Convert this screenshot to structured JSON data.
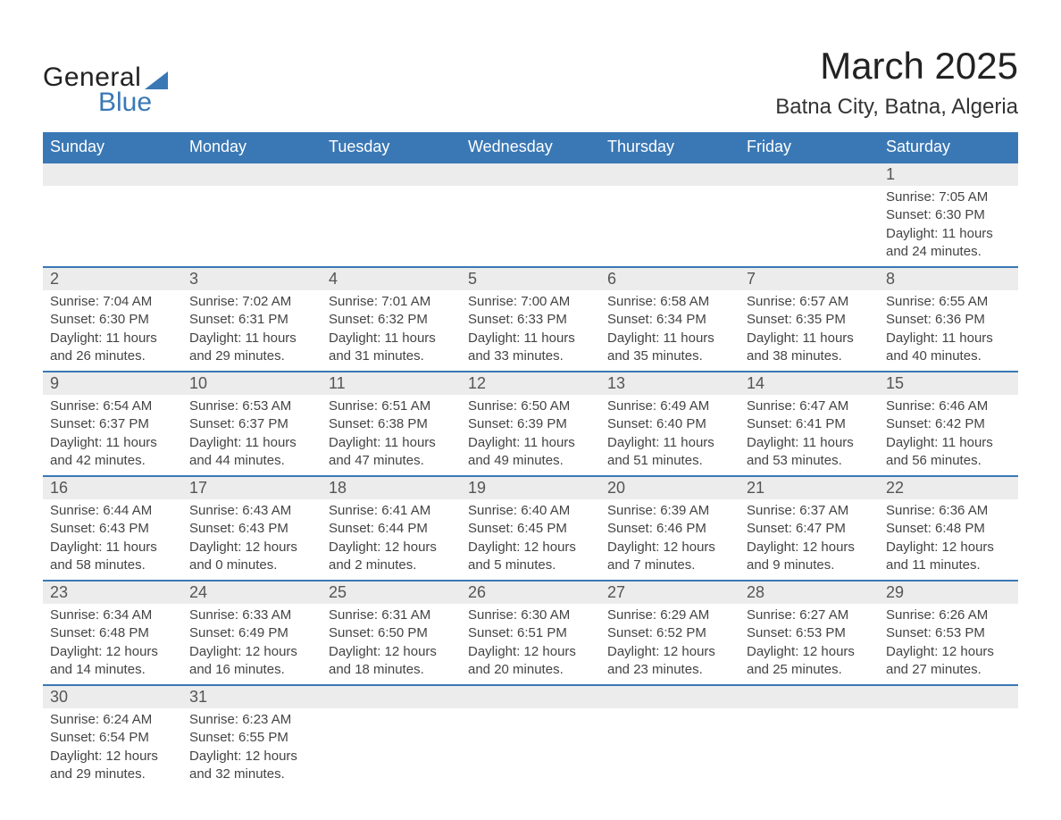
{
  "logo": {
    "word1": "General",
    "word2": "Blue"
  },
  "title": "March 2025",
  "location": "Batna City, Batna, Algeria",
  "colors": {
    "header_bg": "#3a78b5",
    "header_text": "#ffffff",
    "daynum_bg": "#ececec",
    "row_divider": "#3a78b5",
    "body_text": "#444444",
    "title_text": "#222222",
    "page_bg": "#ffffff"
  },
  "fonts": {
    "title_size_pt": 32,
    "location_size_pt": 18,
    "header_size_pt": 14,
    "body_size_pt": 11
  },
  "weekdays": [
    "Sunday",
    "Monday",
    "Tuesday",
    "Wednesday",
    "Thursday",
    "Friday",
    "Saturday"
  ],
  "weeks": [
    {
      "days": [
        null,
        null,
        null,
        null,
        null,
        null,
        {
          "n": "1",
          "sunrise": "Sunrise: 7:05 AM",
          "sunset": "Sunset: 6:30 PM",
          "dl1": "Daylight: 11 hours",
          "dl2": "and 24 minutes."
        }
      ]
    },
    {
      "days": [
        {
          "n": "2",
          "sunrise": "Sunrise: 7:04 AM",
          "sunset": "Sunset: 6:30 PM",
          "dl1": "Daylight: 11 hours",
          "dl2": "and 26 minutes."
        },
        {
          "n": "3",
          "sunrise": "Sunrise: 7:02 AM",
          "sunset": "Sunset: 6:31 PM",
          "dl1": "Daylight: 11 hours",
          "dl2": "and 29 minutes."
        },
        {
          "n": "4",
          "sunrise": "Sunrise: 7:01 AM",
          "sunset": "Sunset: 6:32 PM",
          "dl1": "Daylight: 11 hours",
          "dl2": "and 31 minutes."
        },
        {
          "n": "5",
          "sunrise": "Sunrise: 7:00 AM",
          "sunset": "Sunset: 6:33 PM",
          "dl1": "Daylight: 11 hours",
          "dl2": "and 33 minutes."
        },
        {
          "n": "6",
          "sunrise": "Sunrise: 6:58 AM",
          "sunset": "Sunset: 6:34 PM",
          "dl1": "Daylight: 11 hours",
          "dl2": "and 35 minutes."
        },
        {
          "n": "7",
          "sunrise": "Sunrise: 6:57 AM",
          "sunset": "Sunset: 6:35 PM",
          "dl1": "Daylight: 11 hours",
          "dl2": "and 38 minutes."
        },
        {
          "n": "8",
          "sunrise": "Sunrise: 6:55 AM",
          "sunset": "Sunset: 6:36 PM",
          "dl1": "Daylight: 11 hours",
          "dl2": "and 40 minutes."
        }
      ]
    },
    {
      "days": [
        {
          "n": "9",
          "sunrise": "Sunrise: 6:54 AM",
          "sunset": "Sunset: 6:37 PM",
          "dl1": "Daylight: 11 hours",
          "dl2": "and 42 minutes."
        },
        {
          "n": "10",
          "sunrise": "Sunrise: 6:53 AM",
          "sunset": "Sunset: 6:37 PM",
          "dl1": "Daylight: 11 hours",
          "dl2": "and 44 minutes."
        },
        {
          "n": "11",
          "sunrise": "Sunrise: 6:51 AM",
          "sunset": "Sunset: 6:38 PM",
          "dl1": "Daylight: 11 hours",
          "dl2": "and 47 minutes."
        },
        {
          "n": "12",
          "sunrise": "Sunrise: 6:50 AM",
          "sunset": "Sunset: 6:39 PM",
          "dl1": "Daylight: 11 hours",
          "dl2": "and 49 minutes."
        },
        {
          "n": "13",
          "sunrise": "Sunrise: 6:49 AM",
          "sunset": "Sunset: 6:40 PM",
          "dl1": "Daylight: 11 hours",
          "dl2": "and 51 minutes."
        },
        {
          "n": "14",
          "sunrise": "Sunrise: 6:47 AM",
          "sunset": "Sunset: 6:41 PM",
          "dl1": "Daylight: 11 hours",
          "dl2": "and 53 minutes."
        },
        {
          "n": "15",
          "sunrise": "Sunrise: 6:46 AM",
          "sunset": "Sunset: 6:42 PM",
          "dl1": "Daylight: 11 hours",
          "dl2": "and 56 minutes."
        }
      ]
    },
    {
      "days": [
        {
          "n": "16",
          "sunrise": "Sunrise: 6:44 AM",
          "sunset": "Sunset: 6:43 PM",
          "dl1": "Daylight: 11 hours",
          "dl2": "and 58 minutes."
        },
        {
          "n": "17",
          "sunrise": "Sunrise: 6:43 AM",
          "sunset": "Sunset: 6:43 PM",
          "dl1": "Daylight: 12 hours",
          "dl2": "and 0 minutes."
        },
        {
          "n": "18",
          "sunrise": "Sunrise: 6:41 AM",
          "sunset": "Sunset: 6:44 PM",
          "dl1": "Daylight: 12 hours",
          "dl2": "and 2 minutes."
        },
        {
          "n": "19",
          "sunrise": "Sunrise: 6:40 AM",
          "sunset": "Sunset: 6:45 PM",
          "dl1": "Daylight: 12 hours",
          "dl2": "and 5 minutes."
        },
        {
          "n": "20",
          "sunrise": "Sunrise: 6:39 AM",
          "sunset": "Sunset: 6:46 PM",
          "dl1": "Daylight: 12 hours",
          "dl2": "and 7 minutes."
        },
        {
          "n": "21",
          "sunrise": "Sunrise: 6:37 AM",
          "sunset": "Sunset: 6:47 PM",
          "dl1": "Daylight: 12 hours",
          "dl2": "and 9 minutes."
        },
        {
          "n": "22",
          "sunrise": "Sunrise: 6:36 AM",
          "sunset": "Sunset: 6:48 PM",
          "dl1": "Daylight: 12 hours",
          "dl2": "and 11 minutes."
        }
      ]
    },
    {
      "days": [
        {
          "n": "23",
          "sunrise": "Sunrise: 6:34 AM",
          "sunset": "Sunset: 6:48 PM",
          "dl1": "Daylight: 12 hours",
          "dl2": "and 14 minutes."
        },
        {
          "n": "24",
          "sunrise": "Sunrise: 6:33 AM",
          "sunset": "Sunset: 6:49 PM",
          "dl1": "Daylight: 12 hours",
          "dl2": "and 16 minutes."
        },
        {
          "n": "25",
          "sunrise": "Sunrise: 6:31 AM",
          "sunset": "Sunset: 6:50 PM",
          "dl1": "Daylight: 12 hours",
          "dl2": "and 18 minutes."
        },
        {
          "n": "26",
          "sunrise": "Sunrise: 6:30 AM",
          "sunset": "Sunset: 6:51 PM",
          "dl1": "Daylight: 12 hours",
          "dl2": "and 20 minutes."
        },
        {
          "n": "27",
          "sunrise": "Sunrise: 6:29 AM",
          "sunset": "Sunset: 6:52 PM",
          "dl1": "Daylight: 12 hours",
          "dl2": "and 23 minutes."
        },
        {
          "n": "28",
          "sunrise": "Sunrise: 6:27 AM",
          "sunset": "Sunset: 6:53 PM",
          "dl1": "Daylight: 12 hours",
          "dl2": "and 25 minutes."
        },
        {
          "n": "29",
          "sunrise": "Sunrise: 6:26 AM",
          "sunset": "Sunset: 6:53 PM",
          "dl1": "Daylight: 12 hours",
          "dl2": "and 27 minutes."
        }
      ]
    },
    {
      "days": [
        {
          "n": "30",
          "sunrise": "Sunrise: 6:24 AM",
          "sunset": "Sunset: 6:54 PM",
          "dl1": "Daylight: 12 hours",
          "dl2": "and 29 minutes."
        },
        {
          "n": "31",
          "sunrise": "Sunrise: 6:23 AM",
          "sunset": "Sunset: 6:55 PM",
          "dl1": "Daylight: 12 hours",
          "dl2": "and 32 minutes."
        },
        null,
        null,
        null,
        null,
        null
      ]
    }
  ]
}
